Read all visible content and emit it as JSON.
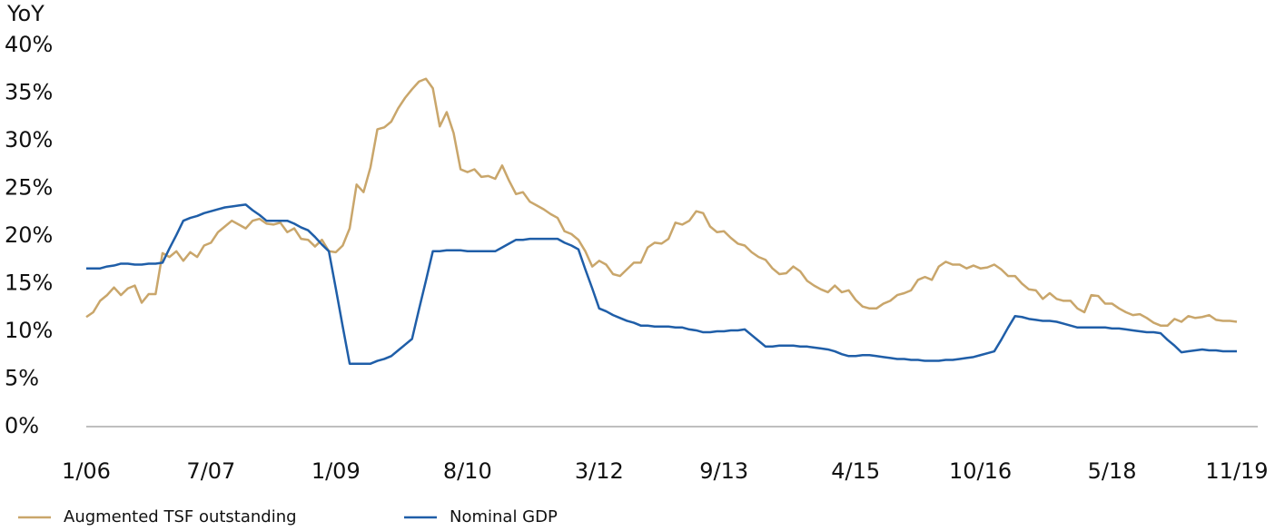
{
  "chart_data": {
    "type": "line",
    "y_label": "YoY",
    "categories": [
      "1/06",
      null,
      null,
      null,
      null,
      null,
      null,
      null,
      null,
      null,
      null,
      null,
      null,
      null,
      null,
      null,
      null,
      null,
      "7/07",
      null,
      null,
      null,
      null,
      null,
      null,
      null,
      null,
      null,
      null,
      null,
      null,
      null,
      null,
      null,
      null,
      null,
      "1/09",
      null,
      null,
      null,
      null,
      null,
      null,
      null,
      null,
      null,
      null,
      null,
      null,
      null,
      null,
      null,
      null,
      null,
      null,
      "8/10",
      null,
      null,
      null,
      null,
      null,
      null,
      null,
      null,
      null,
      null,
      null,
      null,
      null,
      null,
      null,
      null,
      null,
      null,
      "3/12",
      null,
      null,
      null,
      null,
      null,
      null,
      null,
      null,
      null,
      null,
      null,
      null,
      null,
      null,
      null,
      null,
      null,
      "9/13",
      null,
      null,
      null,
      null,
      null,
      null,
      null,
      null,
      null,
      null,
      null,
      null,
      null,
      null,
      null,
      null,
      null,
      null,
      "4/15",
      null,
      null,
      null,
      null,
      null,
      null,
      null,
      null,
      null,
      null,
      null,
      null,
      null,
      null,
      null,
      null,
      null,
      "10/16",
      null,
      null,
      null,
      null,
      null,
      null,
      null,
      null,
      null,
      null,
      null,
      null,
      null,
      null,
      null,
      null,
      null,
      null,
      "5/18",
      null,
      null,
      null,
      null,
      null,
      null,
      null,
      null,
      null,
      null,
      null,
      null,
      null,
      null,
      null,
      null,
      null,
      "11/19"
    ],
    "series": [
      {
        "name": "Augmented TSF outstanding",
        "color": "#c9a66b",
        "values": [
          11.5,
          12,
          13.2,
          13.8,
          14.6,
          13.8,
          14.5,
          14.8,
          13.0,
          13.9,
          13.9,
          18.2,
          17.8,
          18.4,
          17.4,
          18.3,
          17.8,
          19.0,
          19.3,
          20.4,
          21.0,
          21.6,
          21.2,
          20.8,
          21.6,
          21.8,
          21.3,
          21.2,
          21.4,
          20.4,
          20.8,
          19.7,
          19.6,
          18.9,
          19.6,
          18.4,
          18.3,
          19.0,
          20.8,
          25.4,
          24.6,
          27.2,
          31.2,
          31.4,
          32.0,
          33.4,
          34.5,
          35.4,
          36.2,
          36.5,
          35.5,
          31.5,
          33.0,
          30.8,
          27.0,
          26.7,
          27.0,
          26.2,
          26.3,
          26.0,
          27.4,
          25.8,
          24.4,
          24.6,
          23.6,
          23.2,
          22.8,
          22.3,
          21.9,
          20.5,
          20.2,
          19.6,
          18.4,
          16.8,
          17.4,
          17.0,
          16.0,
          15.8,
          16.5,
          17.2,
          17.2,
          18.8,
          19.3,
          19.2,
          19.7,
          21.4,
          21.2,
          21.6,
          22.6,
          22.4,
          21.0,
          20.4,
          20.5,
          19.8,
          19.2,
          19.0,
          18.3,
          17.8,
          17.5,
          16.6,
          16.0,
          16.1,
          16.8,
          16.3,
          15.3,
          14.8,
          14.4,
          14.1,
          14.8,
          14.1,
          14.3,
          13.3,
          12.6,
          12.4,
          12.4,
          12.9,
          13.2,
          13.8,
          14.0,
          14.3,
          15.4,
          15.7,
          15.4,
          16.8,
          17.3,
          17.0,
          17.0,
          16.6,
          16.9,
          16.6,
          16.7,
          17.0,
          16.5,
          15.8,
          15.8,
          15.0,
          14.4,
          14.3,
          13.4,
          14.0,
          13.4,
          13.2,
          13.2,
          12.4,
          12.0,
          13.8,
          13.7,
          12.9,
          12.9,
          12.4,
          12.0,
          11.7,
          11.8,
          11.4,
          10.9,
          10.6,
          10.6,
          11.3,
          11.0,
          11.6,
          11.4,
          11.5,
          11.7,
          11.2,
          11.1,
          11.1,
          11.0
        ]
      },
      {
        "name": "Nominal GDP",
        "color": "#1f5ea8",
        "values": [
          16.6,
          16.6,
          16.6,
          16.8,
          16.9,
          17.1,
          17.1,
          17.0,
          17.0,
          17.1,
          17.1,
          17.2,
          18.7,
          20.1,
          21.6,
          21.9,
          22.1,
          22.4,
          22.6,
          22.8,
          23.0,
          23.1,
          23.2,
          23.3,
          22.7,
          22.2,
          21.6,
          21.6,
          21.6,
          21.6,
          21.3,
          20.9,
          20.6,
          19.9,
          19.1,
          18.4,
          14.5,
          10.5,
          6.6,
          6.6,
          6.6,
          6.6,
          6.9,
          7.1,
          7.4,
          8.0,
          8.6,
          9.2,
          12.3,
          15.3,
          18.4,
          18.4,
          18.5,
          18.5,
          18.5,
          18.4,
          18.4,
          18.4,
          18.4,
          18.4,
          18.8,
          19.2,
          19.6,
          19.6,
          19.7,
          19.7,
          19.7,
          19.7,
          19.7,
          19.3,
          19.0,
          18.6,
          16.5,
          14.5,
          12.4,
          12.1,
          11.7,
          11.4,
          11.1,
          10.9,
          10.6,
          10.6,
          10.5,
          10.5,
          10.5,
          10.4,
          10.4,
          10.2,
          10.1,
          9.9,
          9.9,
          10.0,
          10.0,
          10.1,
          10.1,
          10.2,
          9.6,
          9.0,
          8.4,
          8.4,
          8.5,
          8.5,
          8.5,
          8.4,
          8.4,
          8.3,
          8.2,
          8.1,
          7.9,
          7.6,
          7.4,
          7.4,
          7.5,
          7.5,
          7.4,
          7.3,
          7.2,
          7.1,
          7.1,
          7.0,
          7.0,
          6.9,
          6.9,
          6.9,
          7.0,
          7.0,
          7.1,
          7.2,
          7.3,
          7.5,
          7.7,
          7.9,
          9.1,
          10.4,
          11.6,
          11.5,
          11.3,
          11.2,
          11.1,
          11.1,
          11.0,
          10.8,
          10.6,
          10.4,
          10.4,
          10.4,
          10.4,
          10.4,
          10.3,
          10.3,
          10.2,
          10.1,
          10.0,
          9.9,
          9.9,
          9.8,
          9.1,
          8.5,
          7.8,
          7.9,
          8.0,
          8.1,
          8.0,
          8.0,
          7.9,
          7.9,
          7.9
        ]
      }
    ],
    "ylim": [
      0,
      40
    ],
    "yticks": [
      {
        "value": 0,
        "label": "0%"
      },
      {
        "value": 5,
        "label": "5%"
      },
      {
        "value": 10,
        "label": "10%"
      },
      {
        "value": 15,
        "label": "15%"
      },
      {
        "value": 20,
        "label": "20%"
      },
      {
        "value": 25,
        "label": "25%"
      },
      {
        "value": 30,
        "label": "30%"
      },
      {
        "value": 35,
        "label": "35%"
      },
      {
        "value": 40,
        "label": "40%"
      }
    ],
    "grid": false,
    "legend": "bottom"
  }
}
